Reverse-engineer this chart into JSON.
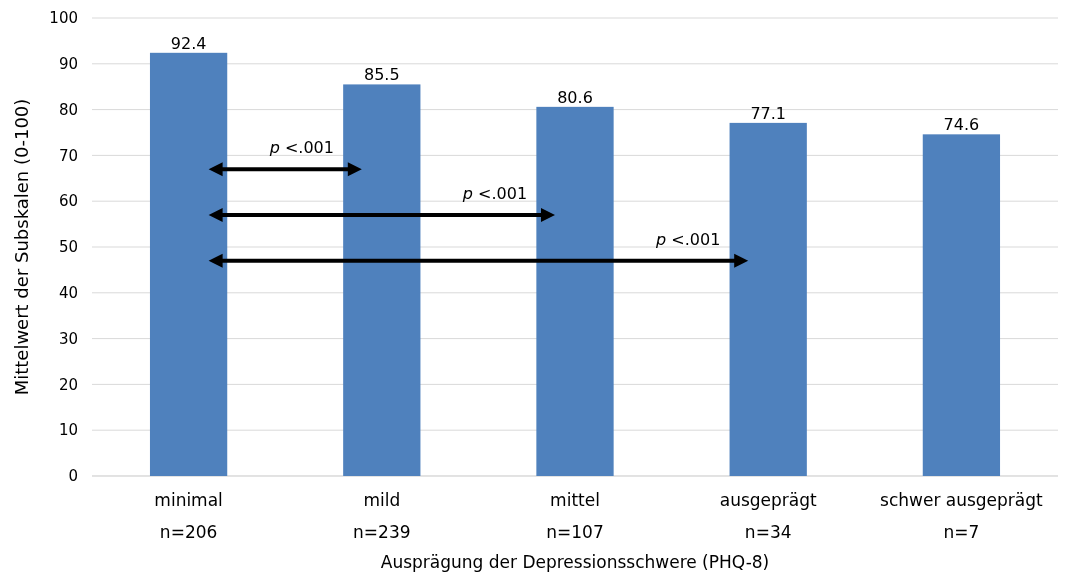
{
  "chart_data": {
    "type": "bar",
    "categories": [
      "minimal\nn=206",
      "mild\nn=239",
      "mittel\nn=107",
      "ausgeprägt\nn=34",
      "schwer ausgeprägt\nn=7"
    ],
    "values": [
      92.4,
      85.5,
      80.6,
      77.1,
      74.6
    ],
    "color": "#4f81bd",
    "data_labels": true,
    "ylim": [
      0,
      100
    ],
    "yticks": [
      0,
      10,
      20,
      30,
      40,
      50,
      60,
      70,
      80,
      90,
      100
    ],
    "grid": "y",
    "xlabel": "Ausprägung der Depressionsschwere (PHQ-8)",
    "ylabel": "Mittelwert der Subskalen (0-100)",
    "annotations": [
      "p <.001",
      "p <.001",
      "p <.001"
    ]
  }
}
